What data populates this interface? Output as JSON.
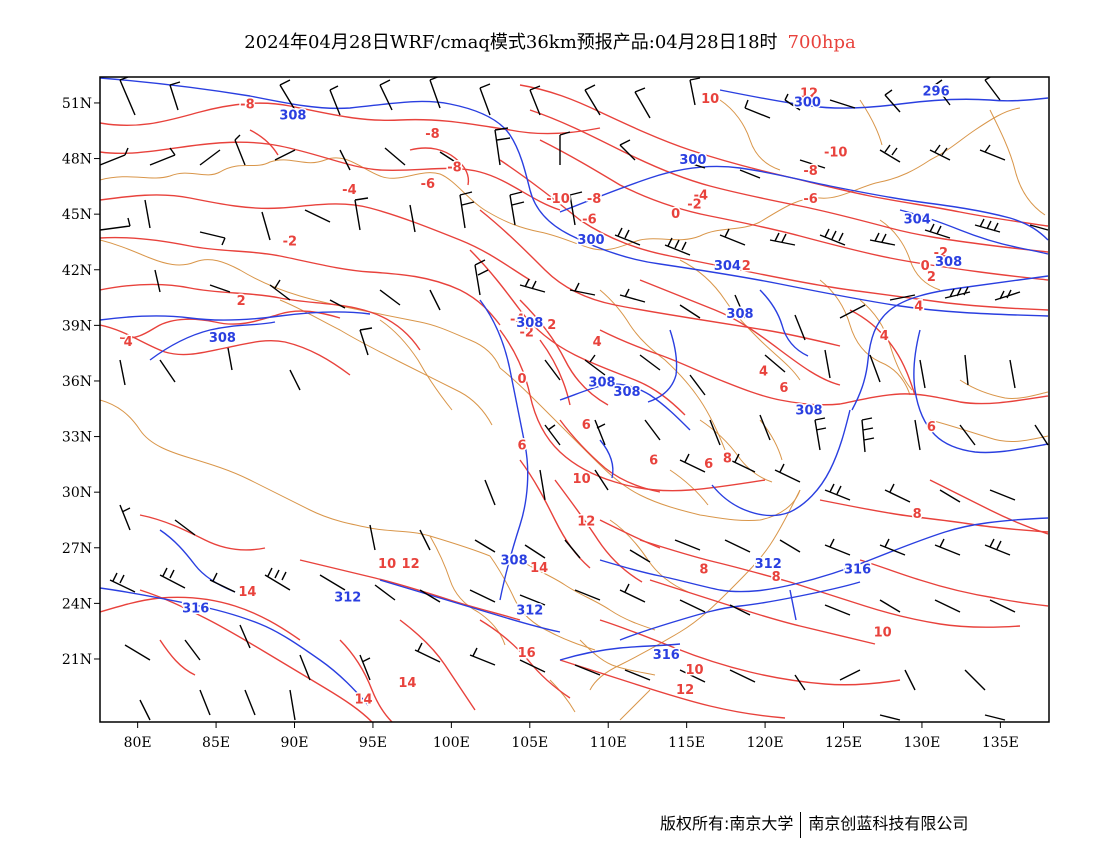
{
  "title": {
    "main": "2024年04月28日WRF/cmaq模式36km预报产品:04月28日18时",
    "level": "700hpa"
  },
  "axes": {
    "x_ticks": [
      "80E",
      "85E",
      "90E",
      "95E",
      "100E",
      "105E",
      "110E",
      "115E",
      "120E",
      "125E",
      "130E",
      "135E"
    ],
    "y_ticks": [
      "51N",
      "48N",
      "45N",
      "42N",
      "39N",
      "36N",
      "33N",
      "30N",
      "27N",
      "24N",
      "21N"
    ]
  },
  "colors": {
    "temperature": "#e8423c",
    "height": "#2a3fe0",
    "boundary": "#d9964a",
    "wind": "#000000"
  },
  "temperature_labels": [
    {
      "text": "-8",
      "lon": 87,
      "lat": 50.7
    },
    {
      "text": "-8",
      "lon": 98.8,
      "lat": 49.1
    },
    {
      "text": "-8",
      "lon": 100.2,
      "lat": 47.3
    },
    {
      "text": "-6",
      "lon": 98.5,
      "lat": 46.4
    },
    {
      "text": "-4",
      "lon": 93.5,
      "lat": 46.1
    },
    {
      "text": "-2",
      "lon": 89.7,
      "lat": 43.3
    },
    {
      "text": "2",
      "lon": 86.6,
      "lat": 40.1
    },
    {
      "text": "4",
      "lon": 79.4,
      "lat": 37.9
    },
    {
      "text": "-4",
      "lon": 104.2,
      "lat": 39.1
    },
    {
      "text": "2",
      "lon": 106.4,
      "lat": 38.8
    },
    {
      "text": "-2",
      "lon": 104.8,
      "lat": 38.4
    },
    {
      "text": "4",
      "lon": 109.3,
      "lat": 37.9
    },
    {
      "text": "0",
      "lon": 104.5,
      "lat": 35.9
    },
    {
      "text": "10",
      "lon": 116.5,
      "lat": 51.0
    },
    {
      "text": "12",
      "lon": 122.8,
      "lat": 51.3
    },
    {
      "text": "-10",
      "lon": 124.5,
      "lat": 48.1
    },
    {
      "text": "-8",
      "lon": 122.9,
      "lat": 47.1
    },
    {
      "text": "-6",
      "lon": 122.9,
      "lat": 45.6
    },
    {
      "text": "-10",
      "lon": 106.8,
      "lat": 45.6
    },
    {
      "text": "-8",
      "lon": 109.1,
      "lat": 45.6
    },
    {
      "text": "-6",
      "lon": 108.8,
      "lat": 44.5
    },
    {
      "text": "-4",
      "lon": 115.9,
      "lat": 45.8
    },
    {
      "text": "-2",
      "lon": 115.5,
      "lat": 45.3
    },
    {
      "text": "0",
      "lon": 114.3,
      "lat": 44.8
    },
    {
      "text": "2",
      "lon": 118.8,
      "lat": 42.0
    },
    {
      "text": "-2",
      "lon": 131.2,
      "lat": 42.7
    },
    {
      "text": "0",
      "lon": 130.2,
      "lat": 42.0
    },
    {
      "text": "2",
      "lon": 130.6,
      "lat": 41.4
    },
    {
      "text": "4",
      "lon": 129.8,
      "lat": 39.8
    },
    {
      "text": "4",
      "lon": 127.6,
      "lat": 38.2
    },
    {
      "text": "4",
      "lon": 119.9,
      "lat": 36.3
    },
    {
      "text": "6",
      "lon": 121.2,
      "lat": 35.4
    },
    {
      "text": "6",
      "lon": 130.6,
      "lat": 33.3
    },
    {
      "text": "6",
      "lon": 108.6,
      "lat": 33.4
    },
    {
      "text": "6",
      "lon": 104.5,
      "lat": 32.3
    },
    {
      "text": "6",
      "lon": 112.9,
      "lat": 31.5
    },
    {
      "text": "6",
      "lon": 116.4,
      "lat": 31.3
    },
    {
      "text": "8",
      "lon": 117.6,
      "lat": 31.6
    },
    {
      "text": "10",
      "lon": 108.3,
      "lat": 30.5
    },
    {
      "text": "12",
      "lon": 108.6,
      "lat": 28.2
    },
    {
      "text": "10",
      "lon": 95.9,
      "lat": 25.9
    },
    {
      "text": "12",
      "lon": 97.4,
      "lat": 25.9
    },
    {
      "text": "14",
      "lon": 105.6,
      "lat": 25.7
    },
    {
      "text": "14",
      "lon": 87.0,
      "lat": 24.4
    },
    {
      "text": "8",
      "lon": 129.7,
      "lat": 28.6
    },
    {
      "text": "8",
      "lon": 116.1,
      "lat": 25.6
    },
    {
      "text": "8",
      "lon": 120.7,
      "lat": 25.2
    },
    {
      "text": "10",
      "lon": 127.5,
      "lat": 22.2
    },
    {
      "text": "16",
      "lon": 104.8,
      "lat": 21.1
    },
    {
      "text": "10",
      "lon": 115.5,
      "lat": 20.2
    },
    {
      "text": "12",
      "lon": 114.9,
      "lat": 19.1
    },
    {
      "text": "14",
      "lon": 97.2,
      "lat": 19.5
    },
    {
      "text": "14",
      "lon": 94.4,
      "lat": 18.6
    }
  ],
  "height_labels": [
    {
      "text": "308",
      "lon": 89.9,
      "lat": 50.1
    },
    {
      "text": "300",
      "lon": 122.7,
      "lat": 50.8
    },
    {
      "text": "296",
      "lon": 130.9,
      "lat": 51.4
    },
    {
      "text": "300",
      "lon": 115.4,
      "lat": 47.7
    },
    {
      "text": "300",
      "lon": 108.9,
      "lat": 43.4
    },
    {
      "text": "304",
      "lon": 129.7,
      "lat": 44.5
    },
    {
      "text": "308",
      "lon": 131.7,
      "lat": 42.2
    },
    {
      "text": "304",
      "lon": 117.6,
      "lat": 42.0
    },
    {
      "text": "308",
      "lon": 118.4,
      "lat": 39.4
    },
    {
      "text": "308",
      "lon": 105.0,
      "lat": 38.9
    },
    {
      "text": "308",
      "lon": 85.4,
      "lat": 38.1
    },
    {
      "text": "308",
      "lon": 109.6,
      "lat": 35.7
    },
    {
      "text": "308",
      "lon": 111.2,
      "lat": 35.2
    },
    {
      "text": "308",
      "lon": 122.8,
      "lat": 34.2
    },
    {
      "text": "312",
      "lon": 120.2,
      "lat": 25.9
    },
    {
      "text": "316",
      "lon": 125.9,
      "lat": 25.6
    },
    {
      "text": "308",
      "lon": 104.0,
      "lat": 26.1
    },
    {
      "text": "312",
      "lon": 93.4,
      "lat": 24.1
    },
    {
      "text": "312",
      "lon": 105.0,
      "lat": 23.4
    },
    {
      "text": "316",
      "lon": 83.7,
      "lat": 23.5
    },
    {
      "text": "316",
      "lon": 113.7,
      "lat": 21.0
    }
  ],
  "footer": {
    "left": "版权所有:南京大学",
    "right": "南京创蓝科技有限公司"
  }
}
